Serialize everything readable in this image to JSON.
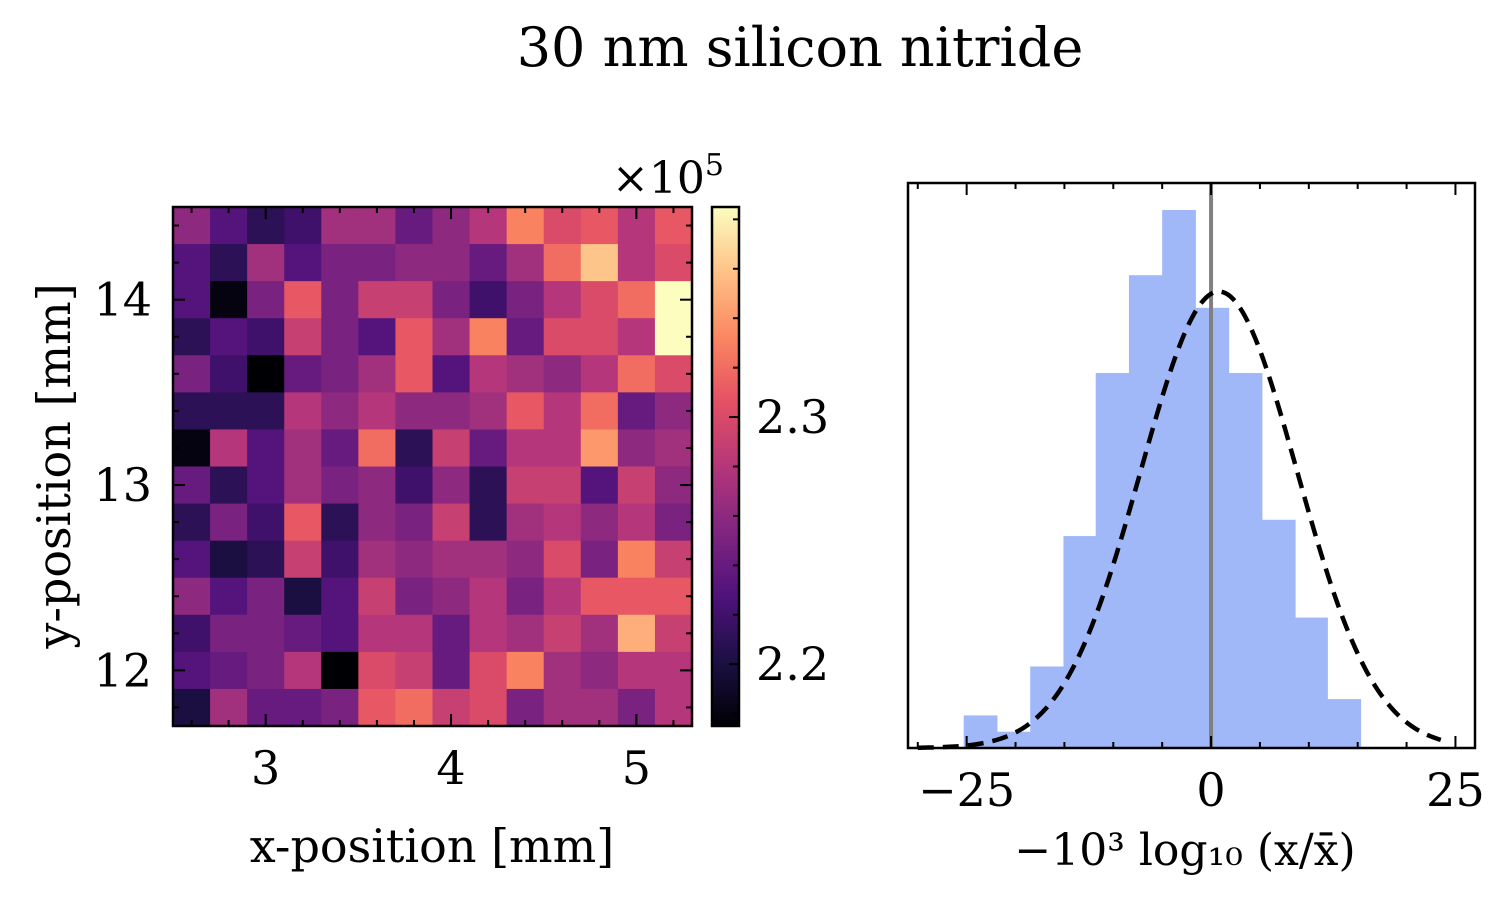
{
  "figure": {
    "suptitle": "30 nm silicon nitride"
  },
  "chart_data": [
    {
      "type": "heatmap",
      "xlabel": "x-position [mm]",
      "ylabel": "y-position [mm]",
      "xlim": [
        2.5,
        5.3
      ],
      "ylim": [
        11.7,
        14.5
      ],
      "xticks": [
        3,
        4,
        5
      ],
      "yticks": [
        12,
        13,
        14
      ],
      "xtick_labels": [
        "3",
        "4",
        "5"
      ],
      "ytick_labels": [
        "12",
        "13",
        "14"
      ],
      "colormap": "magma",
      "colorbar": {
        "offset_label": "×10",
        "offset_exponent": "5",
        "range": [
          2.175,
          2.385
        ],
        "ticks": [
          2.2,
          2.3
        ],
        "tick_labels": [
          "2.2",
          "2.3"
        ]
      },
      "rows_top_to_bottom": [
        [
          2.26,
          2.23,
          2.21,
          2.22,
          2.27,
          2.27,
          2.24,
          2.26,
          2.28,
          2.33,
          2.3,
          2.31,
          2.28,
          2.31
        ],
        [
          2.23,
          2.21,
          2.27,
          2.23,
          2.25,
          2.25,
          2.26,
          2.26,
          2.24,
          2.27,
          2.32,
          2.36,
          2.28,
          2.3
        ],
        [
          2.23,
          2.18,
          2.25,
          2.31,
          2.25,
          2.29,
          2.29,
          2.25,
          2.22,
          2.25,
          2.28,
          2.3,
          2.32,
          2.39
        ],
        [
          2.21,
          2.23,
          2.22,
          2.29,
          2.25,
          2.23,
          2.31,
          2.27,
          2.33,
          2.24,
          2.3,
          2.3,
          2.28,
          2.39
        ],
        [
          2.25,
          2.22,
          2.175,
          2.24,
          2.25,
          2.27,
          2.31,
          2.23,
          2.28,
          2.27,
          2.26,
          2.28,
          2.32,
          2.3
        ],
        [
          2.21,
          2.21,
          2.21,
          2.28,
          2.26,
          2.28,
          2.26,
          2.26,
          2.27,
          2.31,
          2.28,
          2.32,
          2.24,
          2.26
        ],
        [
          2.18,
          2.28,
          2.23,
          2.27,
          2.24,
          2.32,
          2.21,
          2.29,
          2.24,
          2.28,
          2.28,
          2.34,
          2.26,
          2.27
        ],
        [
          2.24,
          2.21,
          2.23,
          2.27,
          2.25,
          2.26,
          2.22,
          2.26,
          2.21,
          2.29,
          2.29,
          2.23,
          2.29,
          2.26
        ],
        [
          2.21,
          2.25,
          2.22,
          2.31,
          2.21,
          2.26,
          2.25,
          2.29,
          2.21,
          2.27,
          2.28,
          2.26,
          2.28,
          2.25
        ],
        [
          2.23,
          2.2,
          2.21,
          2.29,
          2.22,
          2.27,
          2.26,
          2.27,
          2.27,
          2.26,
          2.3,
          2.25,
          2.33,
          2.29
        ],
        [
          2.26,
          2.23,
          2.25,
          2.2,
          2.23,
          2.29,
          2.25,
          2.26,
          2.28,
          2.25,
          2.28,
          2.31,
          2.31,
          2.31
        ],
        [
          2.22,
          2.25,
          2.25,
          2.24,
          2.23,
          2.28,
          2.28,
          2.24,
          2.28,
          2.27,
          2.29,
          2.27,
          2.35,
          2.29
        ],
        [
          2.23,
          2.24,
          2.25,
          2.28,
          2.175,
          2.3,
          2.29,
          2.24,
          2.3,
          2.33,
          2.27,
          2.26,
          2.28,
          2.28
        ],
        [
          2.2,
          2.27,
          2.24,
          2.24,
          2.25,
          2.31,
          2.32,
          2.29,
          2.3,
          2.25,
          2.27,
          2.27,
          2.25,
          2.28
        ]
      ]
    },
    {
      "type": "bar",
      "xlabel": "−10³ log₁₀ (x/x̄)",
      "xlim": [
        -31,
        27
      ],
      "xticks": [
        -25,
        0,
        25
      ],
      "xtick_labels": [
        "−25",
        "0",
        "25"
      ],
      "bar_color": "#a0b8f8",
      "vline_x": 0,
      "vline_color": "#808080",
      "bins": {
        "edges": [
          -25.3,
          -21.9,
          -18.5,
          -15.1,
          -11.8,
          -8.4,
          -5.0,
          -1.6,
          1.8,
          5.2,
          8.6,
          11.9,
          15.3,
          18.7
        ],
        "counts": [
          1,
          0.5,
          2.5,
          6.5,
          11.5,
          14.5,
          16.5,
          13.5,
          11.5,
          7.0,
          4.0,
          1.5,
          0
        ]
      },
      "fit_curve": {
        "style": "dashed",
        "color": "#000000",
        "peak": 14.0,
        "mean": 0.8,
        "sigma": 8.0
      },
      "ylim": [
        0,
        16.5
      ]
    }
  ]
}
